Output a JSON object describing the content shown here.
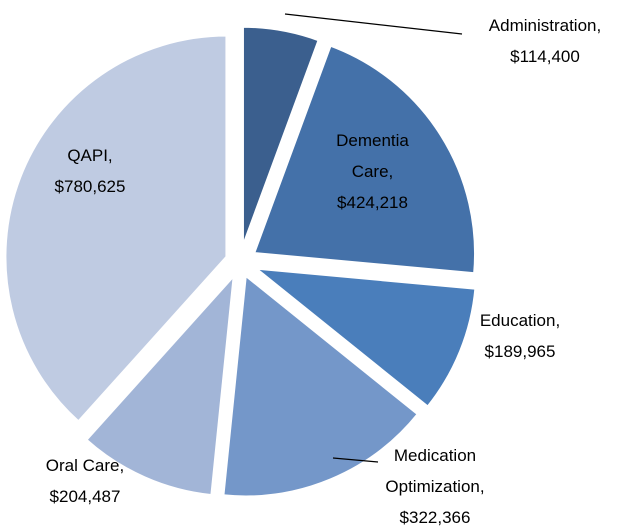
{
  "chart_data": {
    "type": "pie",
    "categories": [
      "Administration,",
      "Dementia Care,",
      "Education,",
      "Medication Optimization,",
      "Oral Care,",
      "QAPI,"
    ],
    "values": [
      114400,
      424218,
      189965,
      322366,
      204487,
      780625
    ],
    "value_labels": [
      "$114,400",
      "$424,218",
      "$189,965",
      "$322,366",
      "$204,487",
      "$780,625"
    ],
    "colors": [
      "#3b5f8e",
      "#4471a9",
      "#4a7ebb",
      "#7497c9",
      "#a2b5d7",
      "#bfcbe2"
    ]
  }
}
